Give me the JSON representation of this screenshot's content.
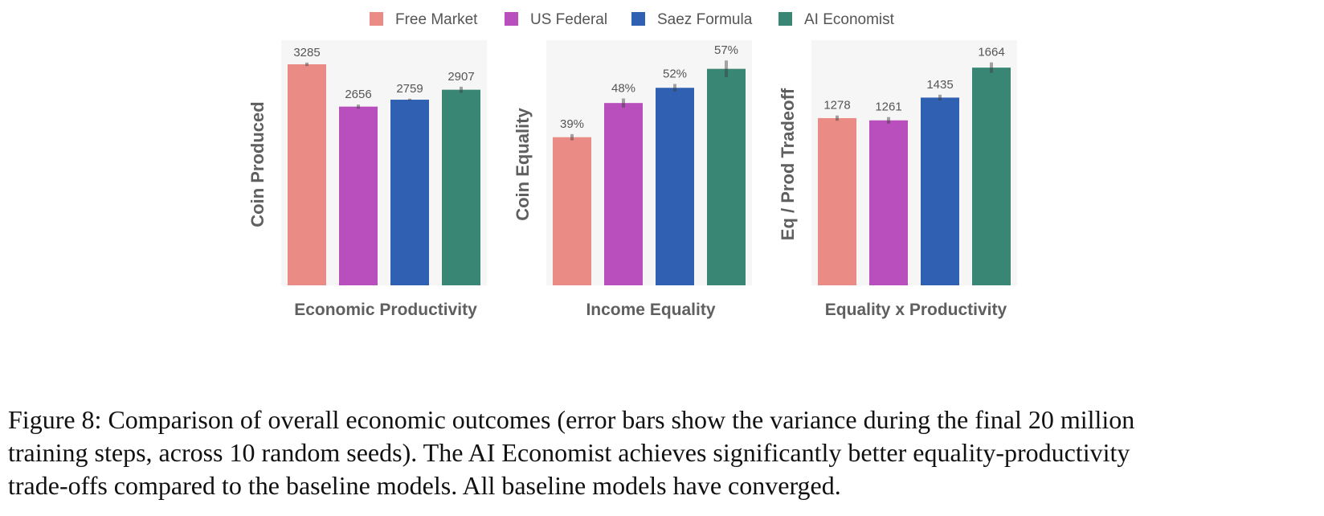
{
  "legend": [
    {
      "name": "Free Market",
      "color": "#eb8b86"
    },
    {
      "name": "US Federal",
      "color": "#b94fbc"
    },
    {
      "name": "Saez Formula",
      "color": "#3060b2"
    },
    {
      "name": "AI Economist",
      "color": "#388673"
    }
  ],
  "chart_data": [
    {
      "type": "bar",
      "categories": [
        "Free Market",
        "US Federal",
        "Saez Formula",
        "AI Economist"
      ],
      "values": [
        3285,
        2656,
        2759,
        2907
      ],
      "labels": [
        "3285",
        "2656",
        "2759",
        "2907"
      ],
      "errors": [
        25,
        30,
        15,
        45
      ],
      "ylim": [
        0,
        3500
      ],
      "ylabel": "Coin Produced",
      "xlabel": "Economic Productivity",
      "colors": [
        "#eb8b86",
        "#b94fbc",
        "#3060b2",
        "#388673"
      ]
    },
    {
      "type": "bar",
      "categories": [
        "Free Market",
        "US Federal",
        "Saez Formula",
        "AI Economist"
      ],
      "values": [
        39,
        48,
        52,
        57
      ],
      "labels": [
        "39%",
        "48%",
        "52%",
        "57%"
      ],
      "errors": [
        0.8,
        1.2,
        1.0,
        2.2
      ],
      "ylim": [
        0,
        62
      ],
      "ylabel": "Coin Equality",
      "xlabel": "Income Equality",
      "colors": [
        "#eb8b86",
        "#b94fbc",
        "#3060b2",
        "#388673"
      ]
    },
    {
      "type": "bar",
      "categories": [
        "Free Market",
        "US Federal",
        "Saez Formula",
        "AI Economist"
      ],
      "values": [
        1278,
        1261,
        1435,
        1664
      ],
      "labels": [
        "1278",
        "1261",
        "1435",
        "1664"
      ],
      "errors": [
        20,
        25,
        22,
        40
      ],
      "ylim": [
        0,
        1800
      ],
      "ylabel": "Eq / Prod Tradeoff",
      "xlabel": "Equality x Productivity",
      "colors": [
        "#eb8b86",
        "#b94fbc",
        "#3060b2",
        "#388673"
      ]
    }
  ],
  "caption": {
    "line1": "Figure 8: Comparison of overall economic outcomes (error bars show the variance during the final 20 million",
    "line2": "training steps, across 10 random seeds). The AI Economist achieves significantly better equality-productivity",
    "line3": "trade-offs compared to the baseline models. All baseline models have converged."
  }
}
